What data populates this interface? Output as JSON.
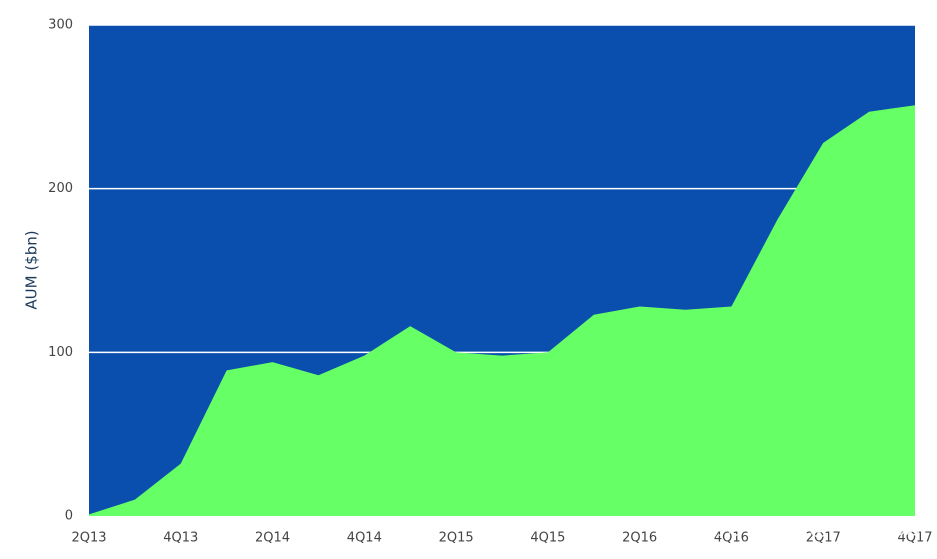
{
  "chart_data": {
    "type": "area",
    "y_label": "AUM ($bn)",
    "categories": [
      "2Q13",
      null,
      "4Q13",
      null,
      "2Q14",
      null,
      "4Q14",
      null,
      "2Q15",
      null,
      "4Q15",
      null,
      "2Q16",
      null,
      "4Q16",
      null,
      "2Q17",
      null,
      "4Q17"
    ],
    "values": [
      1,
      10,
      32,
      89,
      94,
      86,
      98,
      116,
      100,
      98,
      100,
      123,
      128,
      126,
      128,
      181,
      228,
      247,
      251
    ],
    "color": "#66ff66",
    "background": "#0a4fad",
    "ylim": [
      0,
      300
    ],
    "yticks": [
      0,
      100,
      200,
      300
    ],
    "grid": true,
    "watermark": "掘金技术社区 @ 布客飞龙"
  }
}
